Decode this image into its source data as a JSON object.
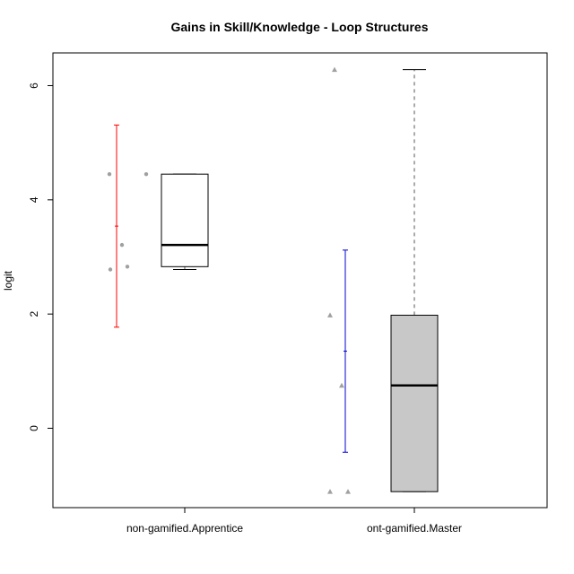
{
  "chart_data": {
    "type": "boxplot",
    "title": "Gains in Skill/Knowledge - Loop Structures",
    "xlabel": "",
    "ylabel": "logit",
    "ylim": [
      -1.4,
      6.6
    ],
    "y_ticks": [
      0,
      2,
      4,
      6
    ],
    "grid": false,
    "legend": "none",
    "categories": [
      "non-gamified.Apprentice",
      "ont-gamified.Master"
    ],
    "groups": [
      {
        "category": "non-gamified.Apprentice",
        "box": {
          "min": 2.78,
          "q1": 2.83,
          "median": 3.21,
          "q3": 4.45,
          "max": 4.45
        },
        "box_fill": "#ffffff",
        "points": [
          4.45,
          4.45,
          3.21,
          2.78,
          2.83
        ],
        "point_color": "#a0a0a0",
        "point_shape": "circle",
        "interval": {
          "low": 1.77,
          "mean": 3.54,
          "high": 5.31
        },
        "interval_color": "#ff0000"
      },
      {
        "category": "ont-gamified.Master",
        "box": {
          "min": -1.11,
          "q1": -1.11,
          "median": 0.75,
          "q3": 1.98,
          "max": 6.28
        },
        "box_fill": "#c8c8c8",
        "points": [
          6.28,
          1.98,
          0.75,
          -1.11,
          -1.11
        ],
        "point_color": "#a0a0a0",
        "point_shape": "triangle",
        "interval": {
          "low": -0.42,
          "mean": 1.35,
          "high": 3.12
        },
        "interval_color": "#0000cc"
      }
    ]
  }
}
